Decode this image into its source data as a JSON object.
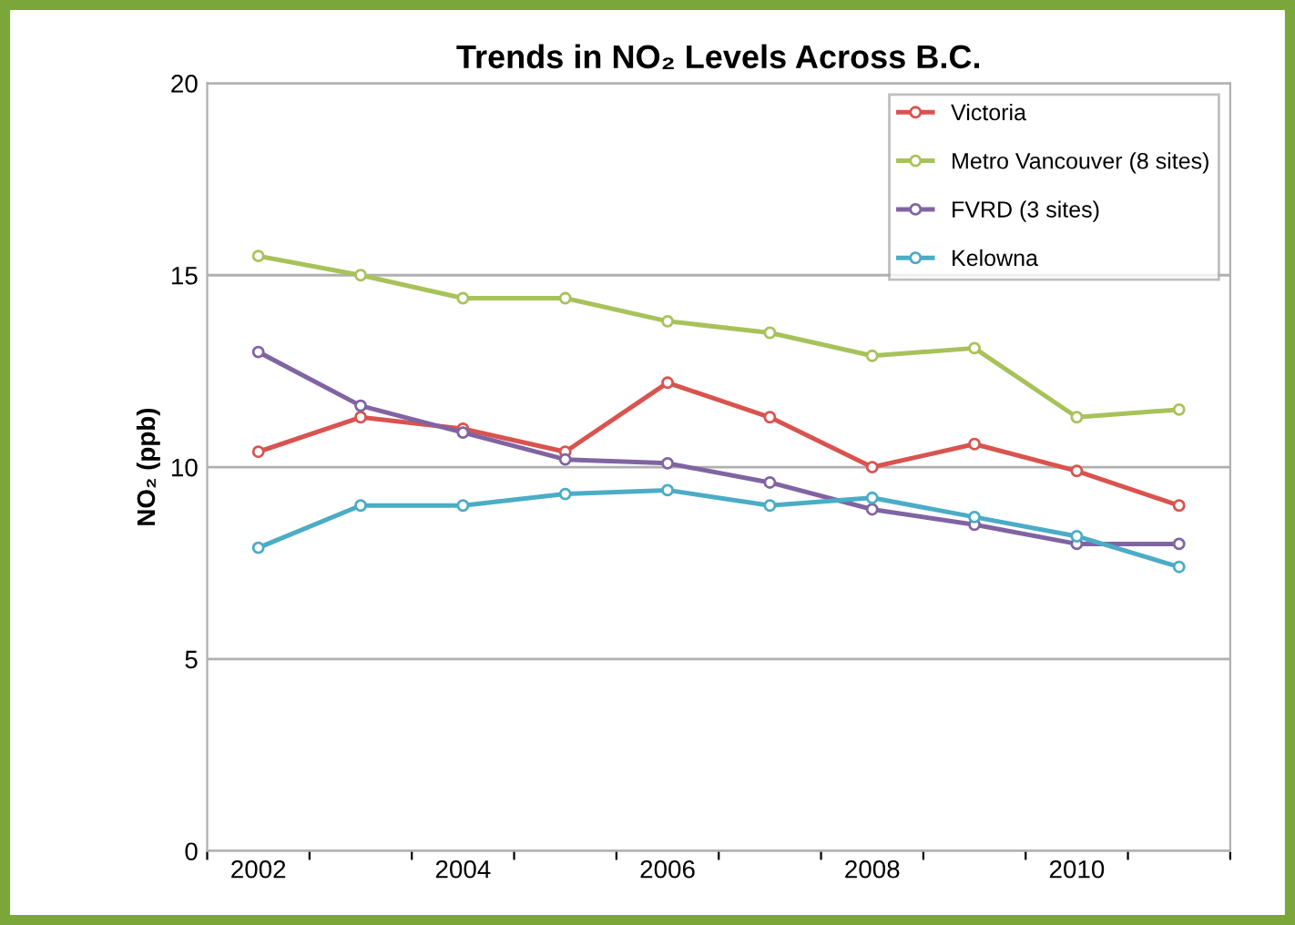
{
  "chart_data": {
    "type": "line",
    "title": "Trends in NO₂ Levels Across B.C.",
    "ylabel": "NO₂ (ppb)",
    "categories": [
      "2002",
      null,
      "2004",
      null,
      "2006",
      null,
      "2008",
      null,
      "2010",
      null
    ],
    "series": [
      {
        "name": "Victoria",
        "color": "#d9534f",
        "values": [
          10.4,
          11.3,
          11.0,
          10.4,
          12.2,
          11.3,
          10.0,
          10.6,
          9.9,
          9.0
        ]
      },
      {
        "name": "Metro Vancouver (8 sites)",
        "color": "#a8c25a",
        "values": [
          15.5,
          15.0,
          14.4,
          14.4,
          13.8,
          13.5,
          12.9,
          13.1,
          11.3,
          11.5
        ]
      },
      {
        "name": "FVRD (3 sites)",
        "color": "#8064a2",
        "values": [
          13.0,
          11.6,
          10.9,
          10.2,
          10.1,
          9.6,
          8.9,
          8.5,
          8.0,
          8.0
        ]
      },
      {
        "name": "Kelowna",
        "color": "#4bacc6",
        "values": [
          7.9,
          9.0,
          9.0,
          9.3,
          9.4,
          9.0,
          9.2,
          8.7,
          8.2,
          7.4
        ]
      }
    ],
    "ylim": [
      0,
      20
    ],
    "yticks": [
      0,
      5,
      10,
      15,
      20
    ],
    "grid": "y",
    "legend": "top right",
    "marker": "circle"
  }
}
